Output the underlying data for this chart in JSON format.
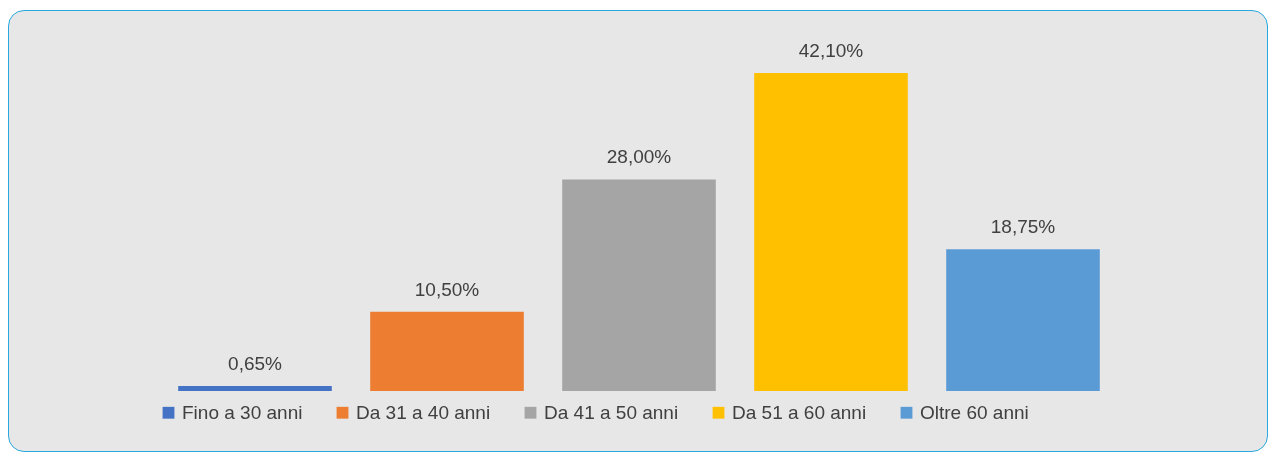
{
  "chart_data": {
    "type": "bar",
    "categories": [
      null
    ],
    "series": [
      {
        "name": "Fino a 30 anni",
        "color": "#4472c4",
        "values": [
          0.65
        ],
        "value_labels": [
          "0,65%"
        ]
      },
      {
        "name": "Da 31 a 40 anni",
        "color": "#ed7d31",
        "values": [
          10.5
        ],
        "value_labels": [
          "10,50%"
        ]
      },
      {
        "name": "Da 41 a 50 anni",
        "color": "#a5a5a5",
        "values": [
          28.0
        ],
        "value_labels": [
          "28,00%"
        ]
      },
      {
        "name": "Da 51 a 60 anni",
        "color": "#ffc000",
        "values": [
          42.1
        ],
        "value_labels": [
          "42,10%"
        ]
      },
      {
        "name": "Oltre 60 anni",
        "color": "#5b9bd5",
        "values": [
          18.75
        ],
        "value_labels": [
          "18,75%"
        ]
      }
    ],
    "legend": "bottom",
    "tick_labels": false
  }
}
